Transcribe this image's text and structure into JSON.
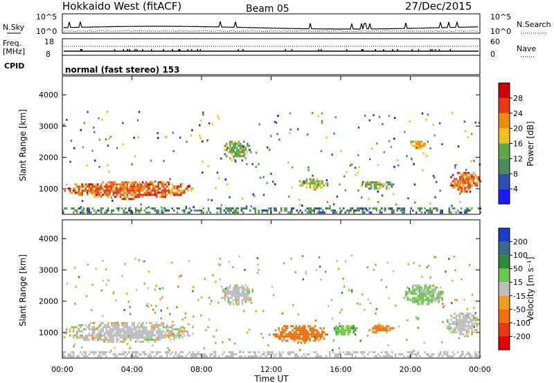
{
  "header": {
    "title": "Hokkaido West (fitACF)",
    "beam": "Beam 05",
    "date": "27/Dec/2015"
  },
  "noise_panel": {
    "left_label": "N.Sky",
    "right_label": "N.Search",
    "left_ticks": [
      "10^5",
      "10^0"
    ],
    "right_ticks": [
      "10^5",
      "10^0"
    ]
  },
  "freq_panel": {
    "left_label_1": "Freq.",
    "left_label_2": "[MHz]",
    "right_label": "Nave",
    "left_ticks": [
      "18",
      "8"
    ],
    "right_ticks": [
      "60",
      "0"
    ]
  },
  "cpid_panel": {
    "left_label": "CPID",
    "program": "normal (fast stereo) 153"
  },
  "axes": {
    "ylabel": "Slant Range [km]",
    "xlabel": "Time UT",
    "y_ticks": [
      "1000",
      "2000",
      "3000",
      "4000"
    ],
    "x_ticks": [
      "00:00",
      "04:00",
      "08:00",
      "12:00",
      "16:00",
      "20:00",
      "00:00"
    ]
  },
  "power_scale": {
    "label": "Power [dB]",
    "ticks": [
      "4",
      "8",
      "12",
      "16",
      "20",
      "24",
      "28"
    ],
    "colors": [
      "#1a1aff",
      "#2f4fb0",
      "#4d8a5a",
      "#5fa84a",
      "#f0c020",
      "#f08a10",
      "#e83a10",
      "#d00000"
    ]
  },
  "velocity_scale": {
    "label": "Velocity [m s⁻¹]",
    "ticks": [
      "200",
      "100",
      "50",
      "15",
      "-15",
      "-50",
      "-100",
      "-200"
    ],
    "colors": [
      "#1a3cc8",
      "#3a6a8a",
      "#2f8a3a",
      "#6cc84a",
      "#bdbdbd",
      "#f0a020",
      "#f07010",
      "#e83a10",
      "#e00000"
    ]
  },
  "chart_data": [
    {
      "type": "heatmap",
      "name": "Power",
      "x_range_hours": [
        0,
        24
      ],
      "y_range_km": [
        180,
        4600
      ],
      "patches": [
        {
          "x0": 0,
          "x1": 7.5,
          "y0": 700,
          "y1": 1300,
          "power_db": 24
        },
        {
          "x0": 9.2,
          "x1": 10.8,
          "y0": 1900,
          "y1": 2600,
          "power_db": 14
        },
        {
          "x0": 13.5,
          "x1": 15.3,
          "y0": 1000,
          "y1": 1400,
          "power_db": 16
        },
        {
          "x0": 17.0,
          "x1": 19.0,
          "y0": 1000,
          "y1": 1300,
          "power_db": 14
        },
        {
          "x0": 19.8,
          "x1": 21.0,
          "y0": 2300,
          "y1": 2600,
          "power_db": 20
        },
        {
          "x0": 22.2,
          "x1": 24,
          "y0": 900,
          "y1": 1600,
          "power_db": 24
        }
      ]
    },
    {
      "type": "heatmap",
      "name": "Velocity",
      "x_range_hours": [
        0,
        24
      ],
      "y_range_km": [
        180,
        4600
      ],
      "patches": [
        {
          "x0": 0,
          "x1": 7.5,
          "y0": 700,
          "y1": 1400,
          "velocity": 0
        },
        {
          "x0": 9.0,
          "x1": 11.0,
          "y0": 1900,
          "y1": 2600,
          "velocity": 0
        },
        {
          "x0": 12.0,
          "x1": 15.3,
          "y0": 700,
          "y1": 1300,
          "velocity": -70
        },
        {
          "x0": 15.5,
          "x1": 17.0,
          "y0": 900,
          "y1": 1300,
          "velocity": 40
        },
        {
          "x0": 17.5,
          "x1": 19.0,
          "y0": 1000,
          "y1": 1300,
          "velocity": -60
        },
        {
          "x0": 19.5,
          "x1": 22.0,
          "y0": 1900,
          "y1": 2600,
          "velocity": 20
        },
        {
          "x0": 22.0,
          "x1": 24,
          "y0": 900,
          "y1": 1700,
          "velocity": 0
        }
      ]
    }
  ]
}
